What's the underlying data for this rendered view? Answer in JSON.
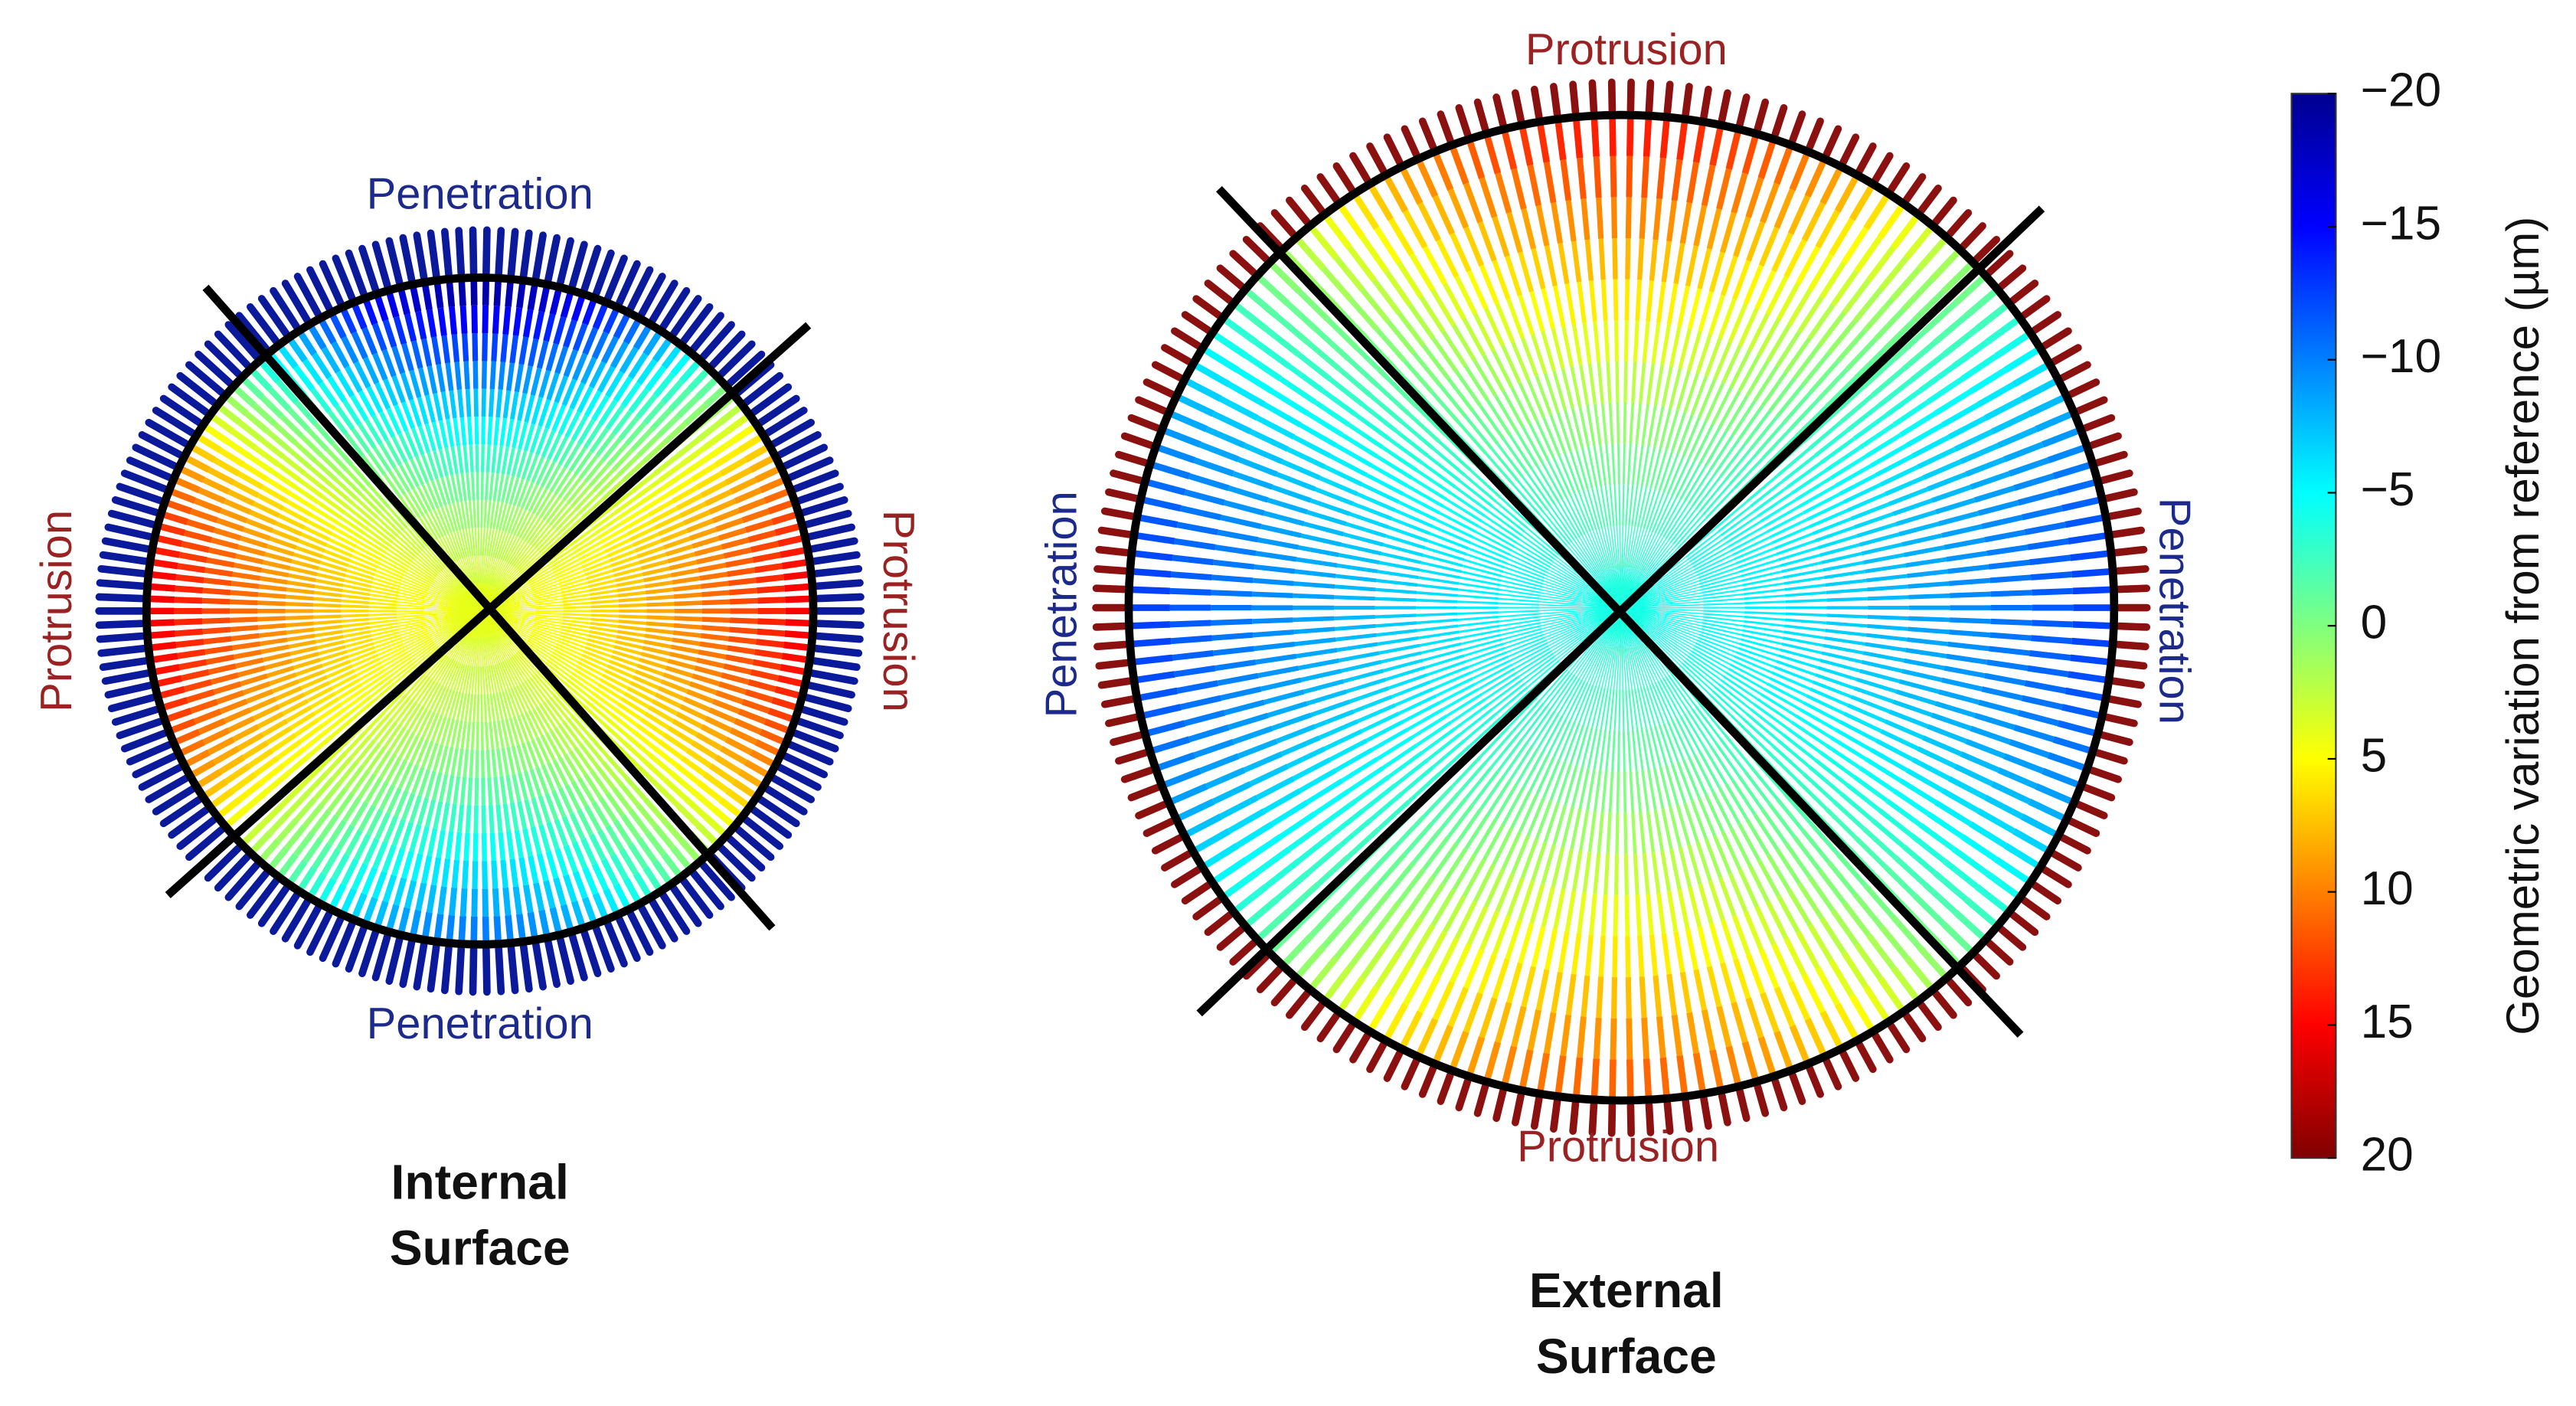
{
  "chart_data": {
    "type": "colormap",
    "panels": [
      {
        "title": [
          "Internal",
          "Surface"
        ],
        "top": "Penetration",
        "bottom": "Penetration",
        "left": "Protrusion",
        "right": "Protrusion"
      },
      {
        "title": [
          "External",
          "Surface"
        ],
        "top": "Protrusion",
        "bottom": "Protrusion",
        "left": "Penetration",
        "right": "Penetration"
      }
    ],
    "colorbar": {
      "label": "Geometric variation from reference (µm)",
      "lim": [
        -20,
        20
      ],
      "reversed": true,
      "ticks": [
        {
          "value": -20,
          "label": "−20"
        },
        {
          "value": -15,
          "label": "−15"
        },
        {
          "value": -10,
          "label": "−10"
        },
        {
          "value": -5,
          "label": "−5"
        },
        0,
        5,
        10,
        15,
        20
      ]
    }
  }
}
